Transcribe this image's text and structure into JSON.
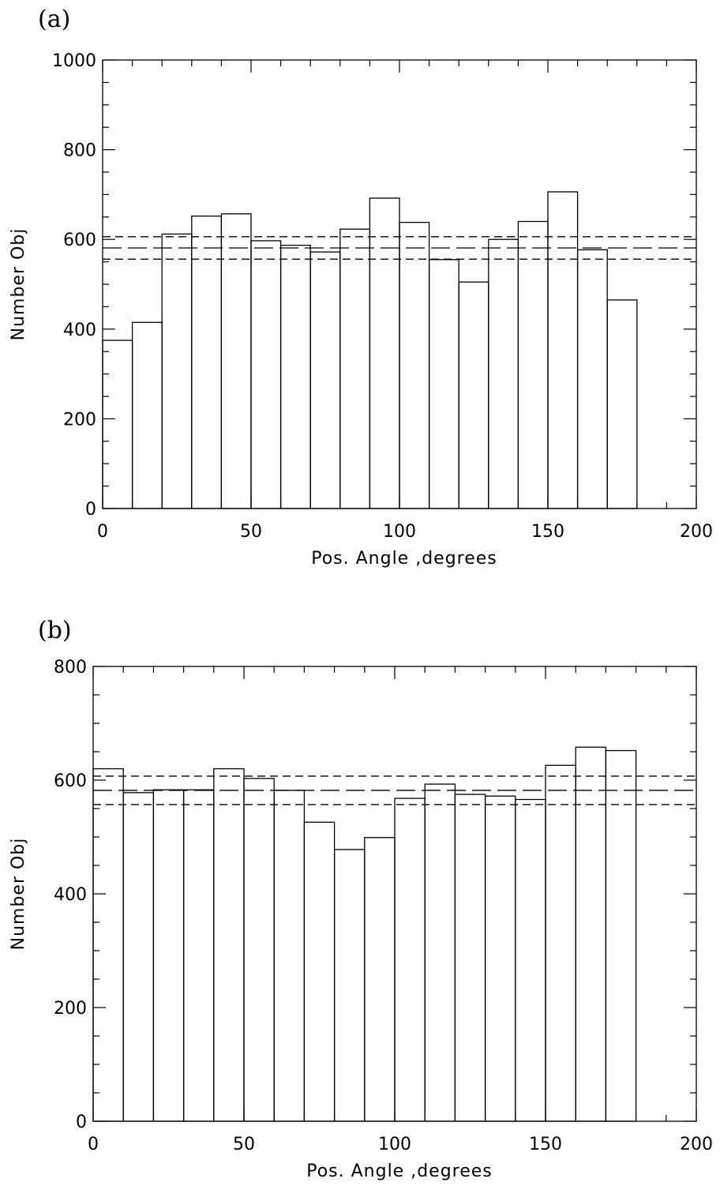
{
  "chart_data": [
    {
      "type": "bar",
      "panel_label": "(a)",
      "xlabel": "Pos. Angle ,degrees",
      "ylabel": "Number Obj",
      "xlim": [
        0,
        200
      ],
      "ylim": [
        0,
        1000
      ],
      "xticks": [
        0,
        50,
        100,
        150,
        200
      ],
      "yticks": [
        0,
        200,
        400,
        600,
        800,
        1000
      ],
      "bin_edges": [
        0,
        10,
        20,
        30,
        40,
        50,
        60,
        70,
        80,
        90,
        100,
        110,
        120,
        130,
        140,
        150,
        160,
        170,
        180
      ],
      "values": [
        375,
        415,
        612,
        652,
        657,
        597,
        587,
        572,
        623,
        692,
        638,
        555,
        505,
        600,
        640,
        706,
        577,
        465
      ],
      "reference_lines": {
        "mean": 581,
        "upper": 606,
        "lower": 556
      }
    },
    {
      "type": "bar",
      "panel_label": "(b)",
      "xlabel": "Pos. Angle ,degrees",
      "ylabel": "Number Obj",
      "xlim": [
        0,
        200
      ],
      "ylim": [
        0,
        800
      ],
      "xticks": [
        0,
        50,
        100,
        150,
        200
      ],
      "yticks": [
        0,
        200,
        400,
        600,
        800
      ],
      "bin_edges": [
        0,
        10,
        20,
        30,
        40,
        50,
        60,
        70,
        80,
        90,
        100,
        110,
        120,
        130,
        140,
        150,
        160,
        170,
        180
      ],
      "values": [
        620,
        578,
        583,
        583,
        620,
        603,
        582,
        526,
        478,
        499,
        568,
        593,
        575,
        572,
        566,
        626,
        658,
        652
      ],
      "reference_lines": {
        "mean": 582,
        "upper": 607,
        "lower": 557
      }
    }
  ]
}
